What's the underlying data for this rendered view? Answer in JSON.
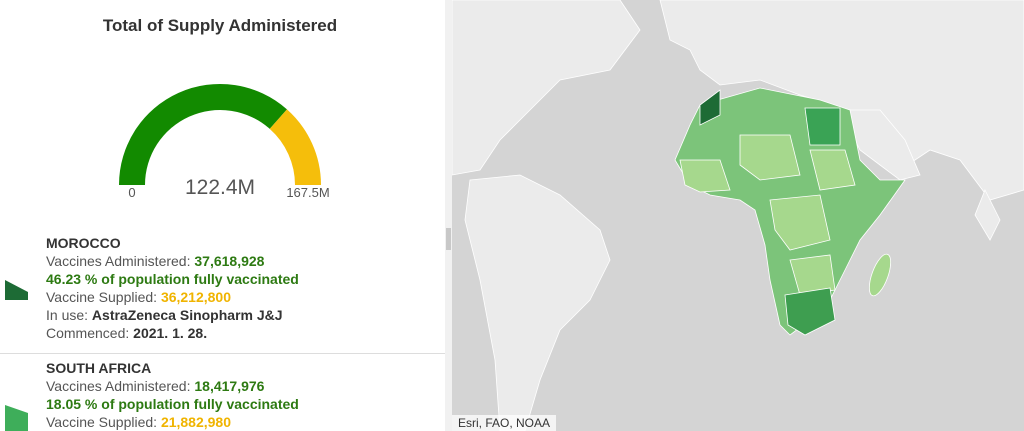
{
  "gauge": {
    "title": "Total of Supply Administered",
    "min": 0,
    "value": {
      "value": 122.4,
      "label": "122.4M"
    },
    "max": {
      "value": 167.5,
      "label": "167.5M"
    }
  },
  "items": [
    {
      "country": "MOROCCO",
      "administered_label": "Vaccines Administered:",
      "administered": "37,618,928",
      "fully": "46.23 % of population fully vaccinated",
      "supplied_label": "Vaccine Supplied:",
      "supplied": "36,212,800",
      "in_use_label": "In use:",
      "in_use": "AstraZeneca Sinopharm J&J",
      "commenced_label": "Commenced:",
      "commenced": "2021. 1. 28."
    },
    {
      "country": "SOUTH AFRICA",
      "administered_label": "Vaccines Administered:",
      "administered": "18,417,976",
      "fully": "18.05 % of population fully vaccinated",
      "supplied_label": "Vaccine Supplied:",
      "supplied": "21,882,980"
    }
  ],
  "map": {
    "attribution": "Esri, FAO, NOAA"
  }
}
